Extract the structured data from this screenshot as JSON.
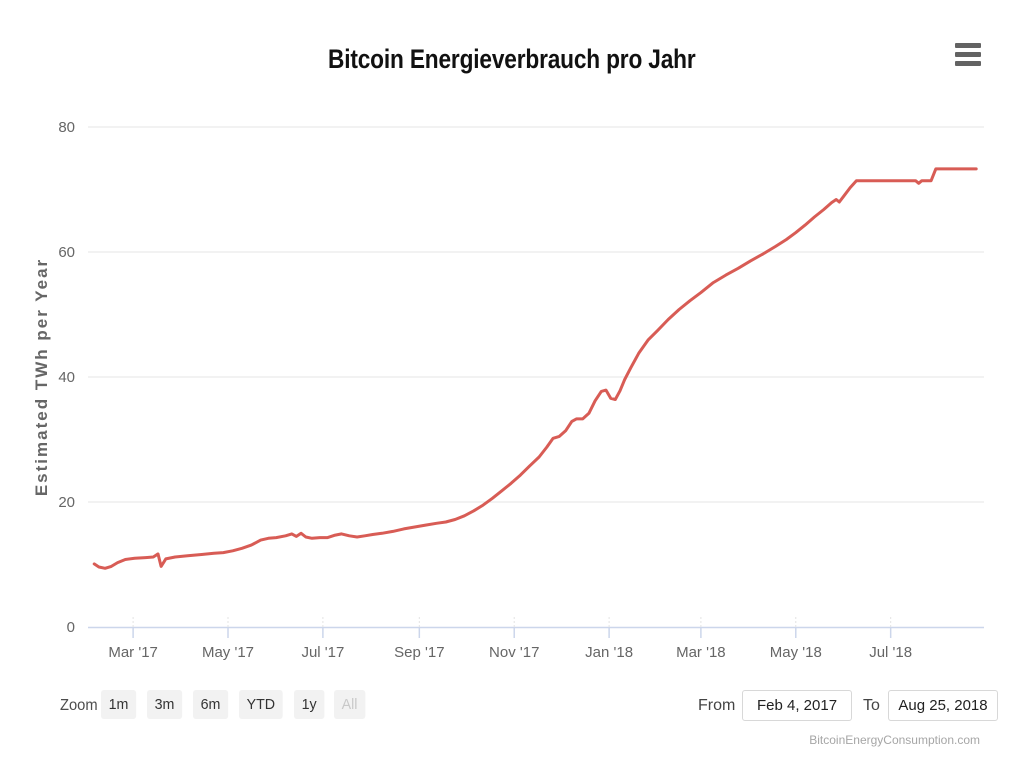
{
  "chart": {
    "title": "Bitcoin Energieverbrauch pro Jahr",
    "y_axis_title": "Estimated TWh per Year"
  },
  "chart_data": {
    "type": "line",
    "title": "Bitcoin Energieverbrauch pro Jahr",
    "xlabel": "",
    "ylabel": "Estimated TWh per Year",
    "ylim": [
      0,
      80
    ],
    "yticks": [
      0,
      20,
      40,
      60,
      80
    ],
    "grid": "horizontal",
    "legend": "none",
    "x_range": [
      "2017-01-31",
      "2018-08-30"
    ],
    "xticks": [
      {
        "date": "2017-03-01",
        "label": "Mar '17"
      },
      {
        "date": "2017-05-01",
        "label": "May '17"
      },
      {
        "date": "2017-07-01",
        "label": "Jul '17"
      },
      {
        "date": "2017-09-01",
        "label": "Sep '17"
      },
      {
        "date": "2017-11-01",
        "label": "Nov '17"
      },
      {
        "date": "2018-01-01",
        "label": "Jan '18"
      },
      {
        "date": "2018-03-01",
        "label": "Mar '18"
      },
      {
        "date": "2018-05-01",
        "label": "May '18"
      },
      {
        "date": "2018-07-01",
        "label": "Jul '18"
      }
    ],
    "series": [
      {
        "name": "Estimated TWh per Year",
        "color": "#d85c55",
        "points": [
          [
            "2017-02-04",
            10.1
          ],
          [
            "2017-02-07",
            9.6
          ],
          [
            "2017-02-11",
            9.4
          ],
          [
            "2017-02-15",
            9.7
          ],
          [
            "2017-02-19",
            10.3
          ],
          [
            "2017-02-24",
            10.8
          ],
          [
            "2017-03-02",
            11.0
          ],
          [
            "2017-03-09",
            11.1
          ],
          [
            "2017-03-14",
            11.2
          ],
          [
            "2017-03-17",
            11.7
          ],
          [
            "2017-03-19",
            9.7
          ],
          [
            "2017-03-22",
            10.9
          ],
          [
            "2017-03-28",
            11.2
          ],
          [
            "2017-04-05",
            11.4
          ],
          [
            "2017-04-14",
            11.6
          ],
          [
            "2017-04-22",
            11.8
          ],
          [
            "2017-04-28",
            11.9
          ],
          [
            "2017-05-04",
            12.2
          ],
          [
            "2017-05-10",
            12.6
          ],
          [
            "2017-05-16",
            13.1
          ],
          [
            "2017-05-22",
            13.9
          ],
          [
            "2017-05-27",
            14.2
          ],
          [
            "2017-06-01",
            14.3
          ],
          [
            "2017-06-07",
            14.6
          ],
          [
            "2017-06-11",
            14.9
          ],
          [
            "2017-06-14",
            14.5
          ],
          [
            "2017-06-17",
            15.0
          ],
          [
            "2017-06-20",
            14.4
          ],
          [
            "2017-06-24",
            14.2
          ],
          [
            "2017-06-29",
            14.3
          ],
          [
            "2017-07-04",
            14.3
          ],
          [
            "2017-07-09",
            14.7
          ],
          [
            "2017-07-13",
            14.9
          ],
          [
            "2017-07-18",
            14.6
          ],
          [
            "2017-07-23",
            14.4
          ],
          [
            "2017-07-28",
            14.6
          ],
          [
            "2017-08-02",
            14.8
          ],
          [
            "2017-08-08",
            15.0
          ],
          [
            "2017-08-15",
            15.3
          ],
          [
            "2017-08-22",
            15.7
          ],
          [
            "2017-08-29",
            16.0
          ],
          [
            "2017-09-05",
            16.3
          ],
          [
            "2017-09-12",
            16.6
          ],
          [
            "2017-09-18",
            16.8
          ],
          [
            "2017-09-24",
            17.2
          ],
          [
            "2017-09-30",
            17.8
          ],
          [
            "2017-10-06",
            18.6
          ],
          [
            "2017-10-12",
            19.5
          ],
          [
            "2017-10-18",
            20.6
          ],
          [
            "2017-10-24",
            21.8
          ],
          [
            "2017-10-30",
            23.0
          ],
          [
            "2017-11-05",
            24.3
          ],
          [
            "2017-11-11",
            25.8
          ],
          [
            "2017-11-17",
            27.2
          ],
          [
            "2017-11-22",
            28.8
          ],
          [
            "2017-11-26",
            30.2
          ],
          [
            "2017-11-30",
            30.5
          ],
          [
            "2017-12-04",
            31.4
          ],
          [
            "2017-12-08",
            32.9
          ],
          [
            "2017-12-11",
            33.3
          ],
          [
            "2017-12-15",
            33.3
          ],
          [
            "2017-12-19",
            34.2
          ],
          [
            "2017-12-23",
            36.2
          ],
          [
            "2017-12-27",
            37.7
          ],
          [
            "2017-12-30",
            37.9
          ],
          [
            "2018-01-02",
            36.6
          ],
          [
            "2018-01-05",
            36.4
          ],
          [
            "2018-01-08",
            37.8
          ],
          [
            "2018-01-11",
            39.6
          ],
          [
            "2018-01-15",
            41.5
          ],
          [
            "2018-01-20",
            43.8
          ],
          [
            "2018-01-26",
            45.9
          ],
          [
            "2018-02-01",
            47.4
          ],
          [
            "2018-02-08",
            49.2
          ],
          [
            "2018-02-15",
            50.8
          ],
          [
            "2018-02-22",
            52.2
          ],
          [
            "2018-03-01",
            53.5
          ],
          [
            "2018-03-09",
            55.1
          ],
          [
            "2018-03-17",
            56.3
          ],
          [
            "2018-03-25",
            57.4
          ],
          [
            "2018-04-02",
            58.6
          ],
          [
            "2018-04-10",
            59.7
          ],
          [
            "2018-04-18",
            60.9
          ],
          [
            "2018-04-25",
            62.0
          ],
          [
            "2018-05-01",
            63.1
          ],
          [
            "2018-05-07",
            64.3
          ],
          [
            "2018-05-13",
            65.6
          ],
          [
            "2018-05-19",
            66.8
          ],
          [
            "2018-05-24",
            67.9
          ],
          [
            "2018-05-27",
            68.4
          ],
          [
            "2018-05-29",
            68.0
          ],
          [
            "2018-06-01",
            69.0
          ],
          [
            "2018-06-05",
            70.3
          ],
          [
            "2018-06-09",
            71.4
          ],
          [
            "2018-06-20",
            71.4
          ],
          [
            "2018-07-01",
            71.4
          ],
          [
            "2018-07-10",
            71.4
          ],
          [
            "2018-07-17",
            71.4
          ],
          [
            "2018-07-19",
            71.0
          ],
          [
            "2018-07-21",
            71.4
          ],
          [
            "2018-07-27",
            71.4
          ],
          [
            "2018-07-30",
            73.3
          ],
          [
            "2018-08-05",
            73.3
          ],
          [
            "2018-08-12",
            73.3
          ],
          [
            "2018-08-19",
            73.3
          ],
          [
            "2018-08-25",
            73.3
          ]
        ]
      }
    ]
  },
  "range_selector": {
    "zoom_label": "Zoom",
    "buttons": [
      {
        "label": "1m",
        "enabled": true
      },
      {
        "label": "3m",
        "enabled": true
      },
      {
        "label": "6m",
        "enabled": true
      },
      {
        "label": "YTD",
        "enabled": true
      },
      {
        "label": "1y",
        "enabled": true
      },
      {
        "label": "All",
        "enabled": false
      }
    ],
    "from_label": "From",
    "from_value": "Feb 4, 2017",
    "to_label": "To",
    "to_value": "Aug 25, 2018"
  },
  "credit": {
    "text": "BitcoinEnergyConsumption.com"
  },
  "colors": {
    "line": "#d85c55",
    "grid": "#e6e6e6",
    "axis": "#ccd6eb",
    "tick_text": "#666666",
    "title_text": "#111111"
  }
}
